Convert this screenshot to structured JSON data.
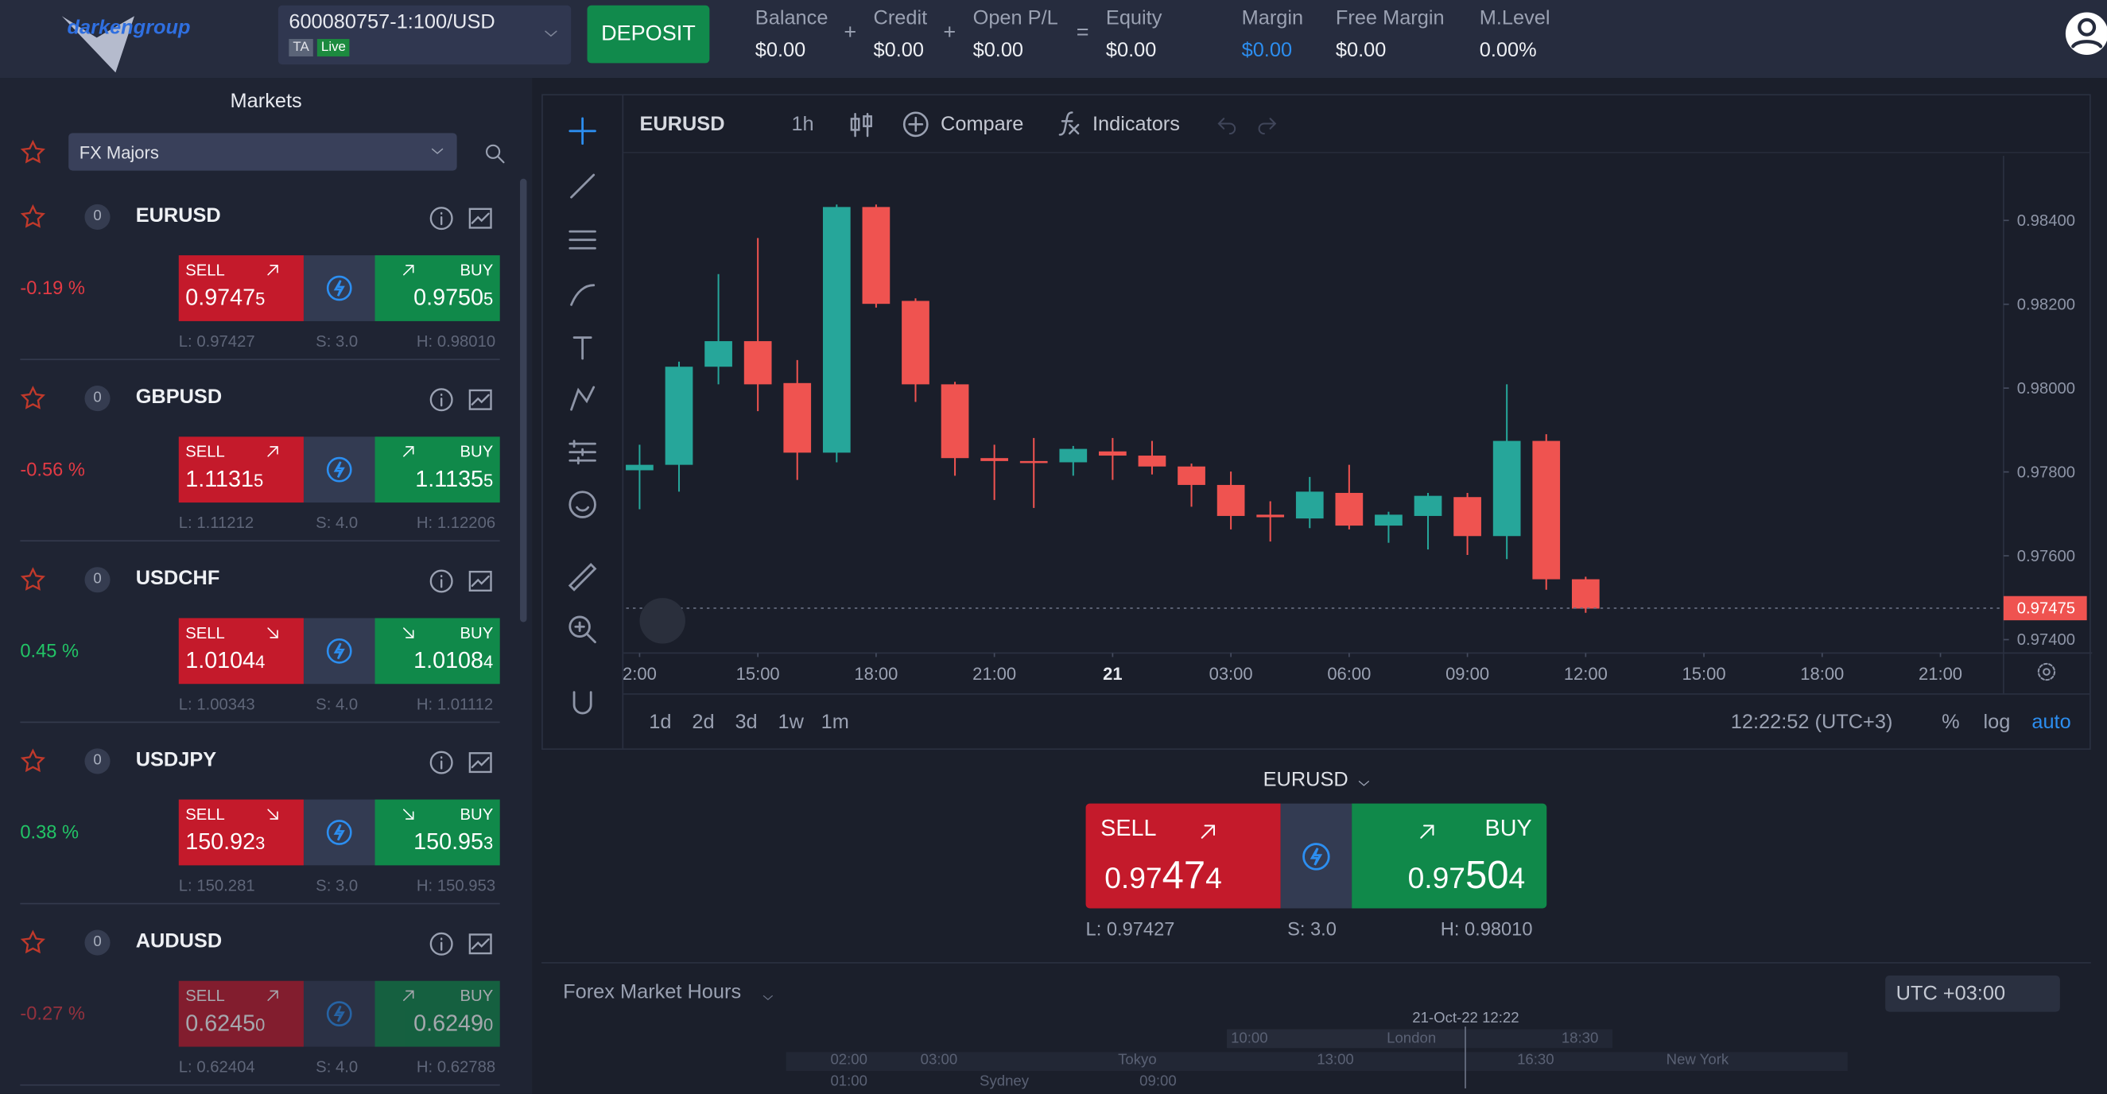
{
  "header": {
    "logo": "darkengroup",
    "account": "600080757-1:100/USD",
    "badges": [
      "TA",
      "Live"
    ],
    "deposit": "DEPOSIT",
    "stats": [
      {
        "label": "Balance",
        "value": "$0.00"
      },
      {
        "op": "+",
        "label": "Credit",
        "value": "$0.00"
      },
      {
        "op": "+",
        "label": "Open P/L",
        "value": "$0.00"
      },
      {
        "op": "=",
        "label": "Equity",
        "value": "$0.00"
      },
      {
        "label": "Margin",
        "value": "$0.00"
      },
      {
        "label": "Free Margin",
        "value": "$0.00"
      },
      {
        "label": "M.Level",
        "value": "0.00%"
      }
    ]
  },
  "markets": {
    "title": "Markets",
    "filter": "FX Majors",
    "items": [
      {
        "symbol": "EURUSD",
        "count": "0",
        "change": "-0.19 %",
        "trend": "up",
        "sell_label": "SELL",
        "sell": {
          "main": "0.9747",
          "pip": "5"
        },
        "buy_label": "BUY",
        "buy": {
          "main": "0.9750",
          "pip": "5"
        },
        "low": "L: 0.97427",
        "spread": "S: 3.0",
        "high": "H: 0.98010"
      },
      {
        "symbol": "GBPUSD",
        "count": "0",
        "change": "-0.56 %",
        "trend": "up",
        "sell_label": "SELL",
        "sell": {
          "main": "1.1131",
          "pip": "5"
        },
        "buy_label": "BUY",
        "buy": {
          "main": "1.1135",
          "pip": "5"
        },
        "low": "L: 1.11212",
        "spread": "S: 4.0",
        "high": "H: 1.12206"
      },
      {
        "symbol": "USDCHF",
        "count": "0",
        "change": "0.45 %",
        "trend": "down",
        "sell_label": "SELL",
        "sell": {
          "main": "1.0104",
          "pip": "4"
        },
        "buy_label": "BUY",
        "buy": {
          "main": "1.0108",
          "pip": "4"
        },
        "low": "L: 1.00343",
        "spread": "S: 4.0",
        "high": "H: 1.01112"
      },
      {
        "symbol": "USDJPY",
        "count": "0",
        "change": "0.38 %",
        "trend": "down",
        "sell_label": "SELL",
        "sell": {
          "main": "150.92",
          "pip": "3"
        },
        "buy_label": "BUY",
        "buy": {
          "main": "150.95",
          "pip": "3"
        },
        "low": "L: 150.281",
        "spread": "S: 3.0",
        "high": "H: 150.953"
      },
      {
        "symbol": "AUDUSD",
        "count": "0",
        "change": "-0.27 %",
        "trend": "up",
        "sell_label": "SELL",
        "sell": {
          "main": "0.6245",
          "pip": "0"
        },
        "buy_label": "BUY",
        "buy": {
          "main": "0.6249",
          "pip": "0"
        },
        "low": "L: 0.62404",
        "spread": "S: 4.0",
        "high": "H: 0.62788"
      }
    ]
  },
  "toolbar": {
    "symbol": "EURUSD",
    "interval": "1h",
    "compare": "Compare",
    "indicators": "Indicators"
  },
  "chart_data": {
    "type": "candlestick",
    "up_color": "#26a69a",
    "down_color": "#ef5350",
    "x": [
      12,
      13,
      14,
      15,
      16,
      17,
      18,
      19,
      20,
      21,
      22,
      23,
      24,
      25,
      26,
      27,
      28,
      29,
      30,
      31,
      32,
      33,
      34,
      35,
      36
    ],
    "open": [
      0.97804,
      0.97817,
      0.98051,
      0.98112,
      0.98012,
      0.97846,
      0.98432,
      0.98208,
      0.98009,
      0.97833,
      0.97826,
      0.97823,
      0.97849,
      0.97839,
      0.97813,
      0.97769,
      0.97698,
      0.97689,
      0.9775,
      0.97672,
      0.97695,
      0.9774,
      0.97647,
      0.97874,
      0.97544
    ],
    "high": [
      0.97865,
      0.98063,
      0.98272,
      0.98358,
      0.98067,
      0.98438,
      0.98438,
      0.98214,
      0.98015,
      0.97865,
      0.97881,
      0.97862,
      0.97881,
      0.97874,
      0.9782,
      0.97801,
      0.9773,
      0.97788,
      0.97817,
      0.97705,
      0.9775,
      0.9775,
      0.98009,
      0.9789,
      0.9755
    ],
    "low": [
      0.97711,
      0.97753,
      0.98009,
      0.97945,
      0.97781,
      0.97823,
      0.98192,
      0.97967,
      0.97791,
      0.97733,
      0.97714,
      0.97791,
      0.97781,
      0.97794,
      0.97717,
      0.97663,
      0.97634,
      0.97666,
      0.97663,
      0.97631,
      0.97615,
      0.97602,
      0.97592,
      0.97519,
      0.97464
    ],
    "close": [
      0.97817,
      0.98051,
      0.98112,
      0.98009,
      0.97846,
      0.98432,
      0.98201,
      0.98009,
      0.97833,
      0.97826,
      0.97823,
      0.97855,
      0.97839,
      0.97813,
      0.97769,
      0.97695,
      0.97692,
      0.97753,
      0.97672,
      0.97698,
      0.97743,
      0.97647,
      0.97874,
      0.97544,
      0.97474
    ],
    "xlim": [
      11.66,
      46.6
    ],
    "ylim": [
      0.97368,
      0.98554
    ],
    "xticks": [
      {
        "value": 12,
        "label": "2:00"
      },
      {
        "value": 15,
        "label": "15:00"
      },
      {
        "value": 18,
        "label": "18:00"
      },
      {
        "value": 21,
        "label": "21:00"
      },
      {
        "value": 24,
        "label": "21"
      },
      {
        "value": 27,
        "label": "03:00"
      },
      {
        "value": 30,
        "label": "06:00"
      },
      {
        "value": 33,
        "label": "09:00"
      },
      {
        "value": 36,
        "label": "12:00"
      },
      {
        "value": 39,
        "label": "15:00"
      },
      {
        "value": 42,
        "label": "18:00"
      },
      {
        "value": 45,
        "label": "21:00"
      }
    ],
    "yticks": [
      {
        "value": 0.974,
        "label": "0.97400"
      },
      {
        "value": 0.976,
        "label": "0.97600"
      },
      {
        "value": 0.978,
        "label": "0.97800"
      },
      {
        "value": 0.98,
        "label": "0.98000"
      },
      {
        "value": 0.982,
        "label": "0.98200"
      },
      {
        "value": 0.984,
        "label": "0.98400"
      }
    ],
    "last_price": 0.97475
  },
  "chart_footer": {
    "ranges": [
      "1d",
      "2d",
      "3d",
      "1w",
      "1m"
    ],
    "clock": "12:22:52 (UTC+3)",
    "options": [
      "%",
      "log",
      "auto"
    ]
  },
  "trade": {
    "symbol": "EURUSD",
    "sell_label": "SELL",
    "sell": [
      "0.97",
      "47",
      "4"
    ],
    "buy_label": "BUY",
    "buy": [
      "0.97",
      "50",
      "4"
    ],
    "low": "L: 0.97427",
    "spread": "S: 3.0",
    "high": "H: 0.98010"
  },
  "forex_hours": {
    "title": "Forex Market Hours",
    "timezone": "UTC +03:00",
    "now": "21-Oct-22 12:22",
    "labels": [
      "02:00",
      "01:00",
      "03:00",
      "Sydney",
      "09:00",
      "Tokyo",
      "10:00",
      "London",
      "18:30",
      "13:00",
      "16:30",
      "New York"
    ]
  }
}
